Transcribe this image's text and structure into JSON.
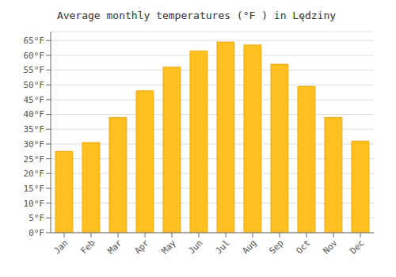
{
  "chart_data": {
    "type": "bar",
    "title": "Average monthly temperatures (°F ) in Lędziny",
    "categories": [
      "Jan",
      "Feb",
      "Mar",
      "Apr",
      "May",
      "Jun",
      "Jul",
      "Aug",
      "Sep",
      "Oct",
      "Nov",
      "Dec"
    ],
    "values": [
      27.5,
      30.5,
      39.0,
      48.0,
      56.0,
      61.5,
      64.5,
      63.5,
      57.0,
      49.5,
      39.0,
      31.0
    ],
    "color": "#FFC020",
    "ylim": [
      0,
      68
    ],
    "yticks": [
      {
        "value": 0,
        "label": "0°F"
      },
      {
        "value": 5,
        "label": "5°F"
      },
      {
        "value": 10,
        "label": "10°F"
      },
      {
        "value": 15,
        "label": "15°F"
      },
      {
        "value": 20,
        "label": "20°F"
      },
      {
        "value": 25,
        "label": "25°F"
      },
      {
        "value": 30,
        "label": "30°F"
      },
      {
        "value": 35,
        "label": "35°F"
      },
      {
        "value": 40,
        "label": "40°F"
      },
      {
        "value": 45,
        "label": "45°F"
      },
      {
        "value": 50,
        "label": "50°F"
      },
      {
        "value": 55,
        "label": "55°F"
      },
      {
        "value": 60,
        "label": "60°F"
      },
      {
        "value": 65,
        "label": "65°F"
      }
    ],
    "grid": true
  }
}
